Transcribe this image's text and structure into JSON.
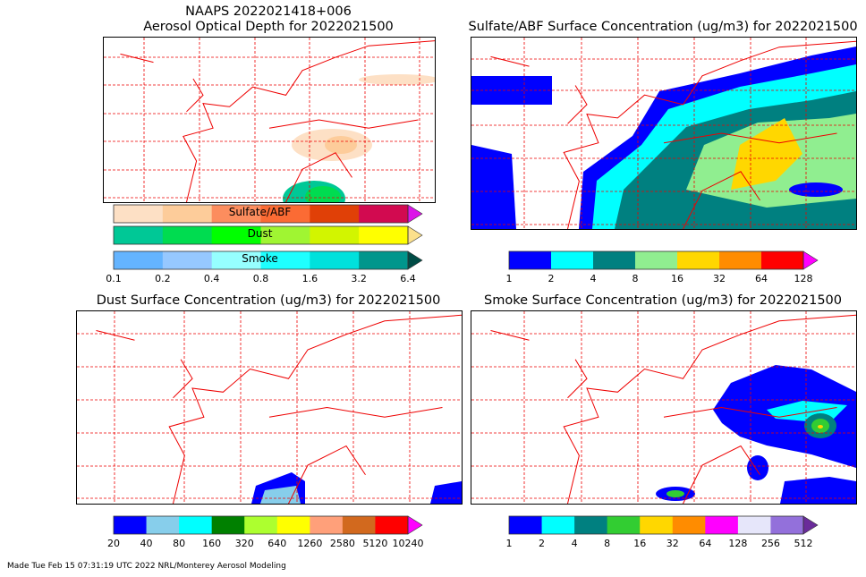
{
  "aod_panel": {
    "title_line1": "NAAPS 2022021418+006",
    "title_line2": "Aerosol Optical Depth for 2022021500",
    "colorbars": [
      {
        "label": "Sulfate/ABF",
        "colors": [
          "#fde0c5",
          "#fdcc9a",
          "#fc8d5e",
          "#fb6b34",
          "#e04007",
          "#d20a50"
        ],
        "extend": "#dc14e8"
      },
      {
        "label": "Dust",
        "colors": [
          "#00c896",
          "#00dc50",
          "#00ff00",
          "#a0f532",
          "#d2f500",
          "#ffff00"
        ],
        "extend": "#fbe08c"
      },
      {
        "label": "Smoke",
        "colors": [
          "#64b4ff",
          "#96c8ff",
          "#96ffff",
          "#1effff",
          "#00e1dc",
          "#00968c"
        ],
        "extend": "#004c46"
      }
    ],
    "ticks": [
      "0.1",
      "0.2",
      "0.4",
      "0.8",
      "1.6",
      "3.2",
      "6.4"
    ]
  },
  "sulfate_panel": {
    "title": "Sulfate/ABF Surface Concentration (ug/m3) for 2022021500",
    "colors": [
      "#0000ff",
      "#00ffff",
      "#008080",
      "#90ee90",
      "#ffd700",
      "#ff8c00",
      "#ff0000"
    ],
    "extend": "#ff00ff",
    "ticks": [
      "1",
      "2",
      "4",
      "8",
      "16",
      "32",
      "64",
      "128"
    ]
  },
  "dust_panel": {
    "title": "Dust Surface Concentration (ug/m3) for 2022021500",
    "colors": [
      "#0000ff",
      "#87ceeb",
      "#00ffff",
      "#008000",
      "#adff2f",
      "#ffff00",
      "#ffa07a",
      "#d2691e",
      "#ff0000"
    ],
    "extend": "#ff00ff",
    "ticks": [
      "20",
      "40",
      "80",
      "160",
      "320",
      "640",
      "1260",
      "2580",
      "5120",
      "10240"
    ]
  },
  "smoke_panel": {
    "title": "Smoke Surface Concentration (ug/m3) for 2022021500",
    "colors": [
      "#0000ff",
      "#00ffff",
      "#008080",
      "#32cd32",
      "#ffd700",
      "#ff8c00",
      "#ff00ff",
      "#e6e6fa",
      "#9370db"
    ],
    "extend": "#6a2b9a",
    "ticks": [
      "1",
      "2",
      "4",
      "8",
      "16",
      "32",
      "64",
      "128",
      "256",
      "512"
    ]
  },
  "footer": "Made Tue Feb 15 07:31:19 UTC 2022 NRL/Monterey Aerosol Modeling"
}
